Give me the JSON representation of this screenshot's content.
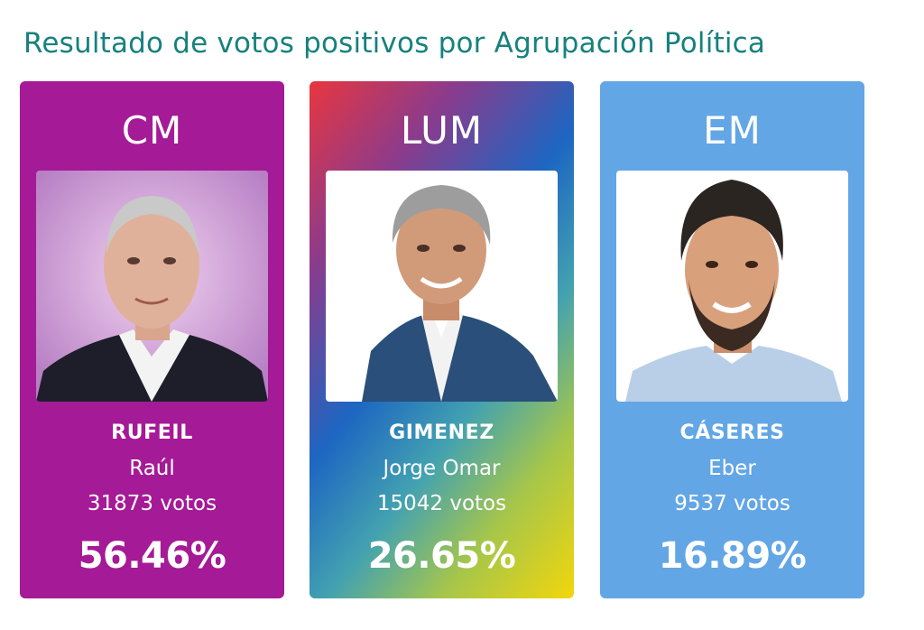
{
  "title": "Resultado de votos positivos por Agrupación Política",
  "votes_word": "votos",
  "candidates": [
    {
      "party": "CM",
      "surname": "RUFEIL",
      "given_name": "Raúl",
      "votes": "31873",
      "percent": "56.46%",
      "color": "#a51a96"
    },
    {
      "party": "LUM",
      "surname": "GIMENEZ",
      "given_name": "Jorge Omar",
      "votes": "15042",
      "percent": "26.65%",
      "color": "gradient"
    },
    {
      "party": "EM",
      "surname": "CÁSERES",
      "given_name": "Eber",
      "votes": "9537",
      "percent": "16.89%",
      "color": "#62a6e5"
    }
  ]
}
